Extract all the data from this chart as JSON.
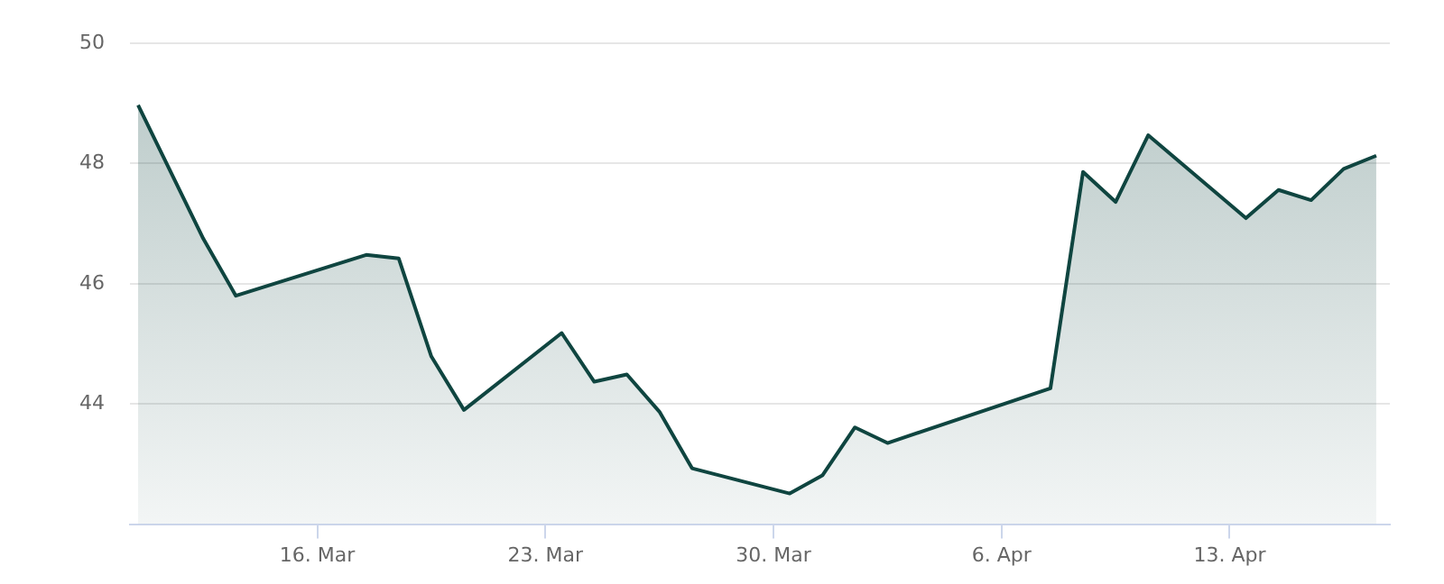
{
  "chart_data": {
    "type": "area",
    "x": [
      "--03-10T12:00",
      "--03-12T12:00",
      "--03-13T12:00",
      "--03-17T12:00",
      "--03-18T12:00",
      "--03-19T12:00",
      "--03-20T12:00",
      "--03-23T12:00",
      "--03-24T12:00",
      "--03-25T12:00",
      "--03-26T12:00",
      "--03-27T12:00",
      "--03-30T12:00",
      "--03-31T12:00",
      "--04-01T12:00",
      "--04-02T12:00",
      "--04-07T12:00",
      "--04-08T12:00",
      "--04-09T12:00",
      "--04-10T12:00",
      "--04-13T12:00",
      "--04-14T12:00",
      "--04-15T12:00",
      "--04-16T12:00",
      "--04-17T12:00"
    ],
    "series": [
      {
        "color": "#0f4540",
        "values": [
          48.97,
          46.75,
          45.8,
          46.48,
          46.42,
          44.79,
          43.9,
          45.18,
          44.37,
          44.49,
          43.87,
          42.93,
          42.51,
          42.81,
          43.61,
          43.35,
          44.26,
          47.86,
          47.36,
          48.47,
          47.09,
          47.56,
          47.39,
          47.91,
          48.13
        ]
      }
    ],
    "xlim": [
      "--03-10T06:00",
      "--04-17T22:00"
    ],
    "xticks": [
      {
        "value": "--03-16",
        "label": "16. Mar"
      },
      {
        "value": "--03-23",
        "label": "23. Mar"
      },
      {
        "value": "--03-30",
        "label": "30. Mar"
      },
      {
        "value": "--04-06",
        "label": "6. Apr"
      },
      {
        "value": "--04-13",
        "label": "13. Apr"
      }
    ],
    "ylim": [
      42,
      50
    ],
    "yticks": [
      44,
      46,
      48,
      50
    ],
    "grid": "y",
    "legend": false,
    "marker": "none",
    "line_style": "solid"
  }
}
